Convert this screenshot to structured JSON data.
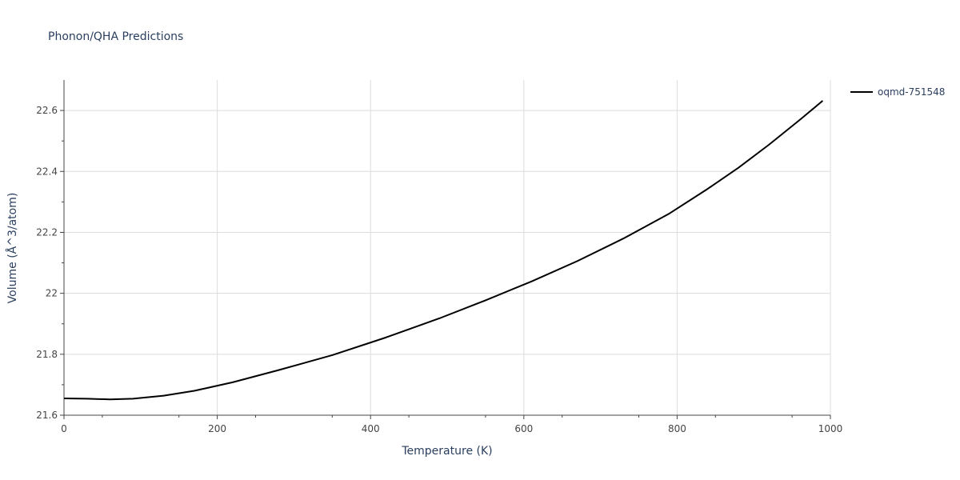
{
  "chart_data": {
    "type": "line",
    "title": "Phonon/QHA Predictions",
    "xlabel": "Temperature (K)",
    "ylabel": "Volume (Å^3/atom)",
    "xlim": [
      0,
      1000
    ],
    "ylim": [
      21.6,
      22.7
    ],
    "x_ticks": [
      0,
      200,
      400,
      600,
      800,
      1000
    ],
    "x_tick_labels": [
      "0",
      "200",
      "400",
      "600",
      "800",
      "1000"
    ],
    "y_ticks": [
      21.6,
      21.8,
      22.0,
      22.2,
      22.4,
      22.6
    ],
    "y_tick_labels": [
      "21.6",
      "21.8",
      "22",
      "22.2",
      "22.4",
      "22.6"
    ],
    "grid": true,
    "legend_position": "top-right",
    "series": [
      {
        "name": "oqmd-751548",
        "color": "#000000",
        "x": [
          0,
          30,
          60,
          90,
          130,
          170,
          220,
          280,
          350,
          420,
          490,
          550,
          610,
          670,
          730,
          790,
          840,
          880,
          920,
          960,
          990
        ],
        "y": [
          21.655,
          21.654,
          21.652,
          21.654,
          21.664,
          21.68,
          21.708,
          21.748,
          21.797,
          21.855,
          21.918,
          21.977,
          22.039,
          22.106,
          22.18,
          22.262,
          22.343,
          22.412,
          22.488,
          22.569,
          22.632
        ]
      }
    ]
  }
}
